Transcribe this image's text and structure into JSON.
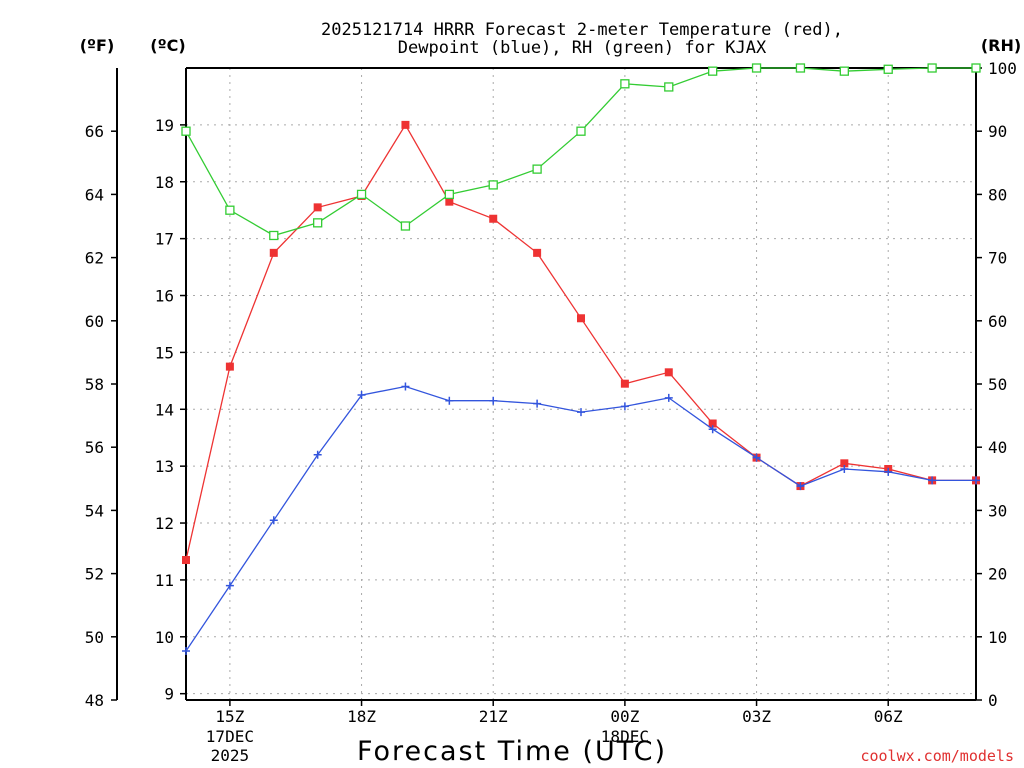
{
  "chart_data": {
    "type": "line",
    "title_line1": "2025121714 HRRR Forecast 2-meter Temperature (red),",
    "title_line2": "Dewpoint (blue), RH (green) for KJAX",
    "xlabel": "Forecast Time (UTC)",
    "watermark": "coolwx.com/models",
    "left_outer_unit": "(ºF)",
    "left_inner_unit": "(ºC)",
    "right_unit": "(RH)",
    "x": [
      "14Z",
      "15Z",
      "16Z",
      "17Z",
      "18Z",
      "19Z",
      "20Z",
      "21Z",
      "22Z",
      "23Z",
      "00Z",
      "01Z",
      "02Z",
      "03Z",
      "04Z",
      "05Z",
      "06Z",
      "07Z",
      "08Z"
    ],
    "x_ticks": [
      {
        "index": 1,
        "label": "15Z",
        "sub1": "17DEC",
        "sub2": "2025"
      },
      {
        "index": 4,
        "label": "18Z",
        "sub1": "",
        "sub2": ""
      },
      {
        "index": 7,
        "label": "21Z",
        "sub1": "",
        "sub2": ""
      },
      {
        "index": 10,
        "label": "00Z",
        "sub1": "18DEC",
        "sub2": ""
      },
      {
        "index": 13,
        "label": "03Z",
        "sub1": "",
        "sub2": ""
      },
      {
        "index": 16,
        "label": "06Z",
        "sub1": "",
        "sub2": ""
      }
    ],
    "celsius_ticks": [
      9,
      10,
      11,
      12,
      13,
      14,
      15,
      16,
      17,
      18,
      19
    ],
    "fahrenheit_ticks": [
      48,
      50,
      52,
      54,
      56,
      58,
      60,
      62,
      64,
      66
    ],
    "rh_ticks": [
      0,
      10,
      20,
      30,
      40,
      50,
      60,
      70,
      80,
      90,
      100
    ],
    "ylim_c": [
      8.8888889,
      20.0
    ],
    "ylim_rh": [
      0,
      100
    ],
    "series": [
      {
        "name": "2-meter Temperature",
        "unit": "C",
        "color": "#ee3333",
        "marker": "filled-square",
        "values": [
          11.35,
          14.75,
          16.75,
          17.55,
          17.75,
          19.0,
          17.65,
          17.35,
          16.75,
          15.6,
          14.45,
          14.65,
          13.75,
          13.15,
          12.65,
          13.05,
          12.95,
          12.75,
          12.75
        ]
      },
      {
        "name": "Dewpoint",
        "unit": "C",
        "color": "#3355dd",
        "marker": "plus",
        "values": [
          9.75,
          10.9,
          12.05,
          13.2,
          14.25,
          14.4,
          14.15,
          14.15,
          14.1,
          13.95,
          14.05,
          14.2,
          13.65,
          13.15,
          12.65,
          12.95,
          12.9,
          12.75,
          12.75
        ]
      },
      {
        "name": "RH",
        "unit": "%",
        "color": "#33cc33",
        "marker": "open-square",
        "values": [
          90.0,
          77.5,
          73.5,
          75.5,
          80.0,
          75.0,
          80.0,
          81.5,
          84.0,
          90.0,
          97.5,
          97.0,
          99.5,
          100.0,
          100.0,
          99.5,
          99.8,
          100.0,
          100.0
        ]
      }
    ]
  }
}
